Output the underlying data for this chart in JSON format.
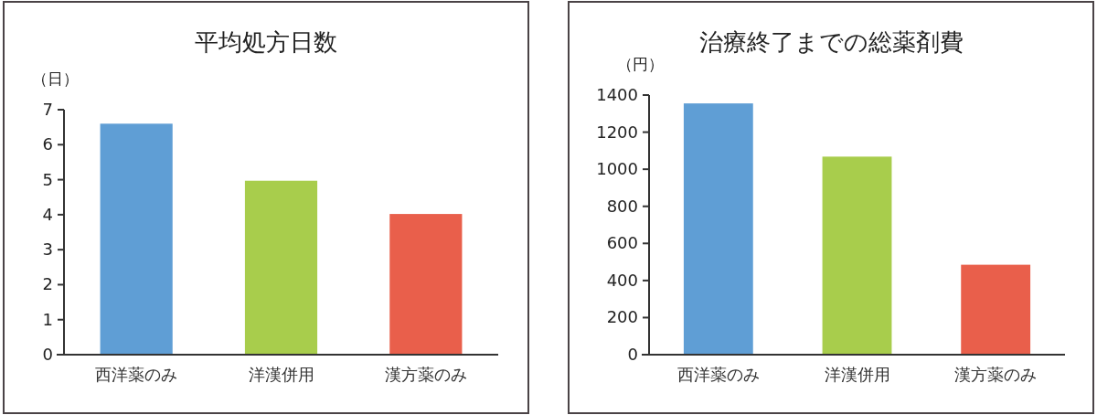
{
  "chart_data": [
    {
      "type": "bar",
      "title": "平均処方日数",
      "ylabel": "（日）",
      "categories": [
        "西洋薬のみ",
        "洋漢併用",
        "漢方薬のみ"
      ],
      "values": [
        6.6,
        4.97,
        4.02
      ],
      "colors": [
        "#5f9ed5",
        "#a8cd4c",
        "#e95f4b"
      ],
      "ylim": [
        0,
        7
      ],
      "yticks": [
        0,
        1,
        2,
        3,
        4,
        5,
        6,
        7
      ]
    },
    {
      "type": "bar",
      "title": "治療終了までの総薬剤費",
      "ylabel": "（円）",
      "categories": [
        "西洋薬のみ",
        "洋漢併用",
        "漢方薬のみ"
      ],
      "values": [
        1355,
        1068,
        485
      ],
      "colors": [
        "#5f9ed5",
        "#a8cd4c",
        "#e95f4b"
      ],
      "ylim": [
        0,
        1400
      ],
      "yticks": [
        0,
        200,
        400,
        600,
        800,
        1000,
        1200,
        1400
      ]
    }
  ]
}
